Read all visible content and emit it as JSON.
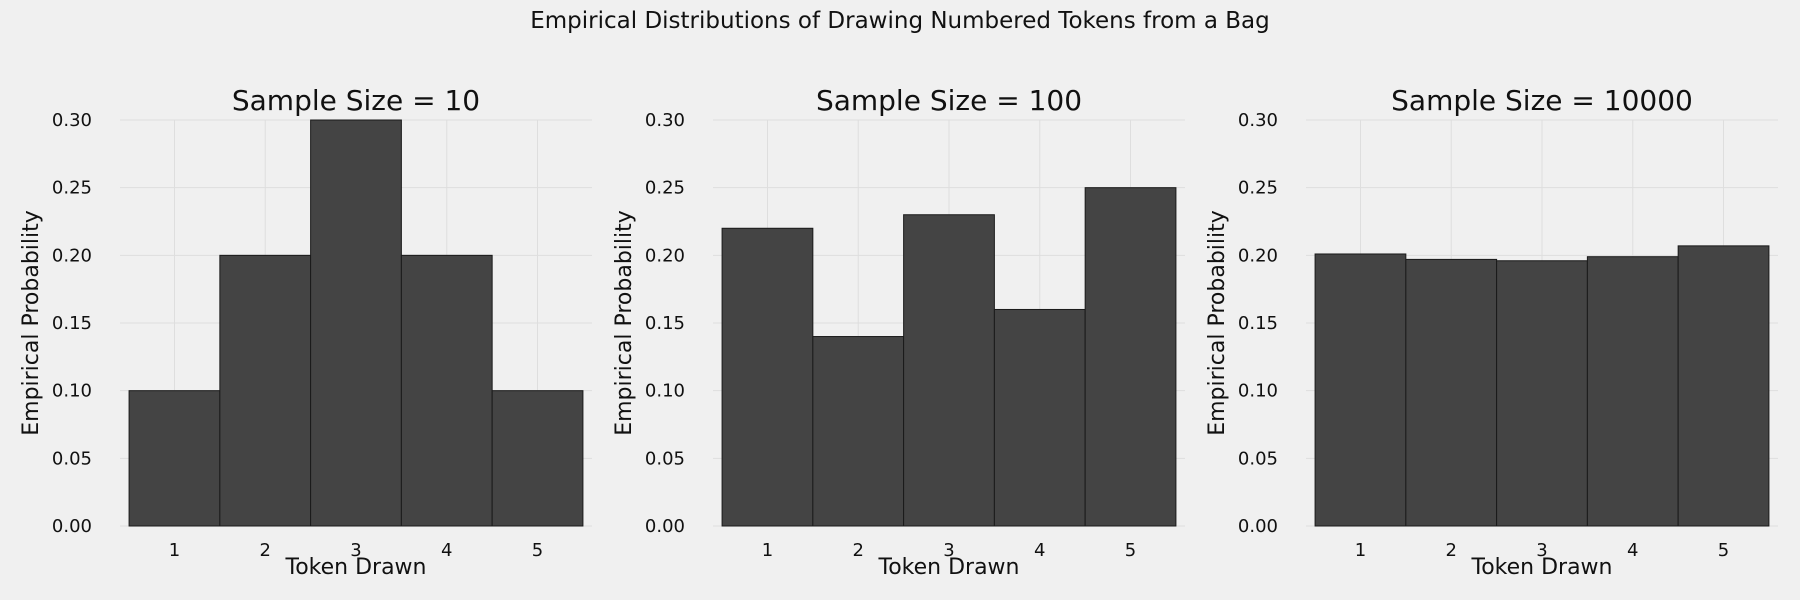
{
  "suptitle": "Empirical Distributions of Drawing Numbered Tokens from a Bag",
  "colors": {
    "background": "#f0f0f0",
    "bar": "#444444",
    "grid": "#dedede"
  },
  "chart_data": [
    {
      "type": "bar",
      "title": "Sample Size = 10",
      "xlabel": "Token Drawn",
      "ylabel": "Empirical Probability",
      "categories": [
        "1",
        "2",
        "3",
        "4",
        "5"
      ],
      "values": [
        0.1,
        0.2,
        0.3,
        0.2,
        0.1
      ],
      "ylim": [
        0,
        0.3
      ],
      "yticks": [
        "0.00",
        "0.05",
        "0.10",
        "0.15",
        "0.20",
        "0.25",
        "0.30"
      ],
      "grid": true
    },
    {
      "type": "bar",
      "title": "Sample Size = 100",
      "xlabel": "Token Drawn",
      "ylabel": "Empirical Probability",
      "categories": [
        "1",
        "2",
        "3",
        "4",
        "5"
      ],
      "values": [
        0.22,
        0.14,
        0.23,
        0.16,
        0.25
      ],
      "ylim": [
        0,
        0.3
      ],
      "yticks": [
        "0.00",
        "0.05",
        "0.10",
        "0.15",
        "0.20",
        "0.25",
        "0.30"
      ],
      "grid": true
    },
    {
      "type": "bar",
      "title": "Sample Size = 10000",
      "xlabel": "Token Drawn",
      "ylabel": "Empirical Probability",
      "categories": [
        "1",
        "2",
        "3",
        "4",
        "5"
      ],
      "values": [
        0.201,
        0.197,
        0.196,
        0.199,
        0.207
      ],
      "ylim": [
        0,
        0.3
      ],
      "yticks": [
        "0.00",
        "0.05",
        "0.10",
        "0.15",
        "0.20",
        "0.25",
        "0.30"
      ],
      "grid": true
    }
  ]
}
